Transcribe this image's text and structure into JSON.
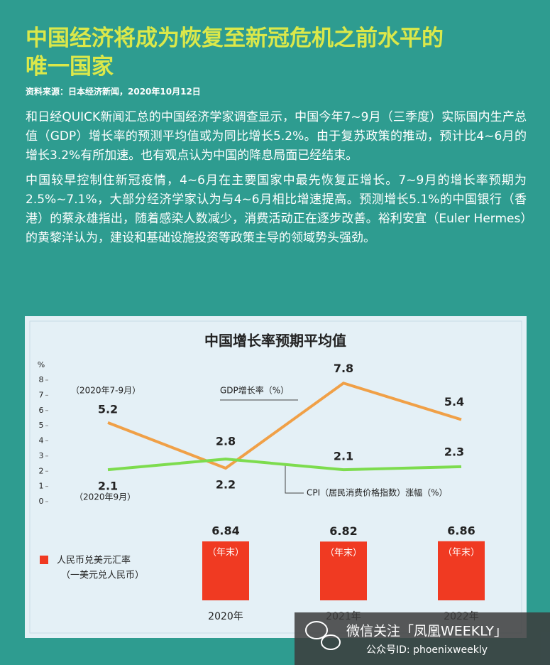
{
  "title": "中国经济将成为恢复至新冠危机之前水平的唯一国家",
  "source": "资料来源：日本经济新闻，2020年10月12日",
  "paragraphs": [
    "和日经QUICK新闻汇总的中国经济学家调查显示，中国今年7~9月（三季度）实际国内生产总值（GDP）增长率的预测平均值或为同比增长5.2%。由于复苏政策的推动，预计比4~6月的增长3.2%有所加速。也有观点认为中国的降息局面已经结束。",
    "中国较早控制住新冠疫情，4~6月在主要国家中最先恢复正增长。7~9月的增长率预期为2.5%~7.1%，大部分经济学家认为与4~6月相比增速提高。预测增长5.1%的中国银行（香港）的蔡永雄指出，随着感染人数减少，消费活动正在逐步改善。裕利安宜（Euler Hermes）的黄黎洋认为，建设和基础设施投资等政策主导的领域势头强劲。"
  ],
  "chart_data": [
    {
      "type": "line",
      "title": "中国增长率预期平均值",
      "y_unit": "%",
      "categories": [
        null,
        "2020年",
        "2021年",
        "2022年"
      ],
      "ylim": [
        0,
        8
      ],
      "yticks": [
        0,
        1,
        2,
        3,
        4,
        5,
        6,
        7,
        8
      ],
      "series": [
        {
          "name": "GDP增长率（%）",
          "note": "（2020年7-9月）",
          "color": "#f0a047",
          "values": [
            5.2,
            2.2,
            7.8,
            5.4
          ]
        },
        {
          "name": "CPI（居民消费价格指数）涨幅（%）",
          "note": "（2020年9月）",
          "color": "#7ddc4e",
          "values": [
            2.1,
            2.8,
            2.1,
            2.3
          ]
        }
      ]
    },
    {
      "type": "bar",
      "series": [
        {
          "name": "人民币兑美元汇率",
          "subtitle": "（一美元兑人民币）",
          "color": "#f03a22",
          "values": [
            6.84,
            6.82,
            6.86
          ],
          "bar_labels": [
            "（年末）",
            "（年末）",
            "（年末）"
          ]
        }
      ]
    }
  ],
  "watermark": {
    "line1": "微信关注「凤凰WEEKLY」",
    "line2": "公众号ID: phoenixweekly"
  }
}
